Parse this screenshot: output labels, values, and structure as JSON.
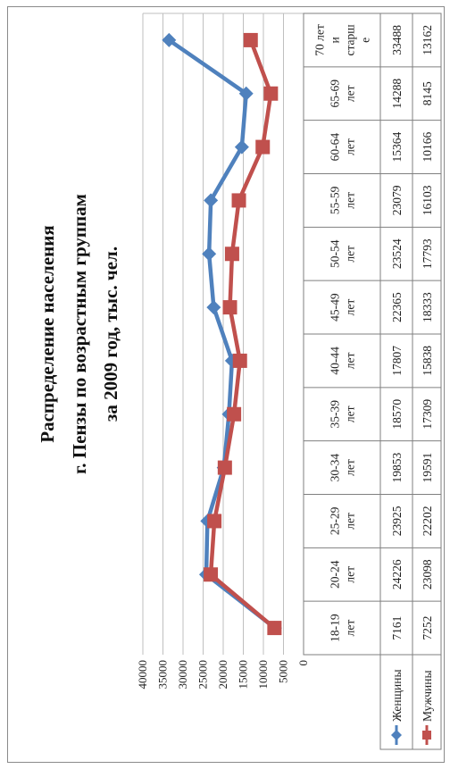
{
  "chart_data": {
    "type": "line",
    "title_lines": [
      "Распределение населения",
      "г. Пензы по возрастным группам",
      "за 2009 год, тыс. чел."
    ],
    "categories": [
      [
        "18-19",
        "лет"
      ],
      [
        "20-24",
        "лет"
      ],
      [
        "25-29",
        "лет"
      ],
      [
        "30-34",
        "лет"
      ],
      [
        "35-39",
        "лет"
      ],
      [
        "40-44",
        "лет"
      ],
      [
        "45-49",
        "лет"
      ],
      [
        "50-54",
        "лет"
      ],
      [
        "55-59",
        "лет"
      ],
      [
        "60-64",
        "лет"
      ],
      [
        "65-69",
        "лет"
      ],
      [
        "70 лет",
        "и",
        "старш",
        "е"
      ]
    ],
    "series": [
      {
        "name": "Женщины",
        "color": "#4F81BD",
        "marker": "diamond",
        "values": [
          7161,
          24226,
          23925,
          19853,
          18570,
          17807,
          22365,
          23524,
          23079,
          15364,
          14288,
          33488
        ]
      },
      {
        "name": "Мужчины",
        "color": "#C0504D",
        "marker": "square",
        "values": [
          7252,
          23098,
          22202,
          19591,
          17309,
          15838,
          18333,
          17793,
          16103,
          10166,
          8145,
          13162
        ]
      }
    ],
    "ylim": [
      0,
      40000
    ],
    "yticks": [
      "0",
      "5000",
      "10000",
      "15000",
      "20000",
      "25000",
      "30000",
      "35000",
      "40000"
    ],
    "grid": true,
    "legend": "data-table"
  }
}
